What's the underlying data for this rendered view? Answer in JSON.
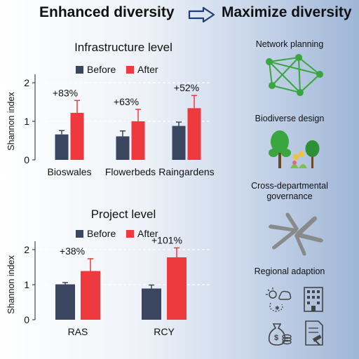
{
  "header": {
    "left": "Enhanced diversity",
    "right": "Maximize diversity"
  },
  "colors": {
    "before": "#3a4660",
    "after": "#ee3a3e",
    "green": "#3aa640",
    "gray": "#8a8a8a"
  },
  "chart_data": [
    {
      "type": "bar",
      "title": "Infrastructure level",
      "ylabel": "Shannon index",
      "categories": [
        "Bioswales",
        "Flowerbeds",
        "Raingardens"
      ],
      "series": [
        {
          "name": "Before",
          "values": [
            0.66,
            0.61,
            0.88
          ],
          "errors": [
            0.1,
            0.14,
            0.1
          ]
        },
        {
          "name": "After",
          "values": [
            1.22,
            1.0,
            1.34
          ],
          "errors": [
            0.32,
            0.31,
            0.33
          ]
        }
      ],
      "annotations": [
        "+83%",
        "+63%",
        "+52%"
      ],
      "ylim": [
        0,
        2
      ],
      "yticks": [
        0,
        1,
        2
      ],
      "legend": "top",
      "grid": "dashed"
    },
    {
      "type": "bar",
      "title": "Project level",
      "ylabel": "Shannon index",
      "categories": [
        "RAS",
        "RCY"
      ],
      "series": [
        {
          "name": "Before",
          "values": [
            1.01,
            0.89
          ],
          "errors": [
            0.05,
            0.1
          ]
        },
        {
          "name": "After",
          "values": [
            1.39,
            1.78
          ],
          "errors": [
            0.35,
            0.27
          ]
        }
      ],
      "annotations": [
        "+38%",
        "+101%"
      ],
      "ylim": [
        0,
        2
      ],
      "yticks": [
        0,
        1,
        2
      ],
      "legend": "top",
      "grid": "dashed"
    }
  ],
  "right_panel": {
    "items": [
      {
        "label": "Network planning",
        "icon": "network-graph-icon"
      },
      {
        "label": "Biodiverse design",
        "icon": "trees-flowers-icon"
      },
      {
        "label": "Cross-departmental governance",
        "icon": "hands-circle-icon"
      },
      {
        "label": "Regional adaption",
        "icon": "regional-icons-grid"
      }
    ]
  }
}
